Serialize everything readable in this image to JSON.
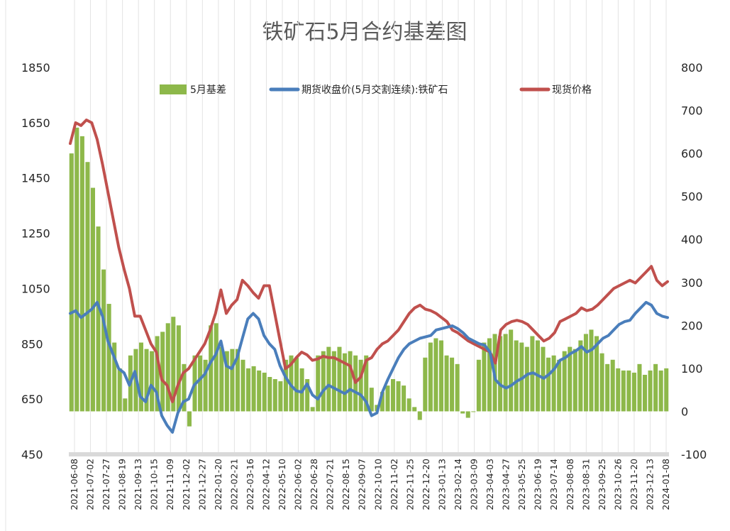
{
  "chart_data": {
    "type": "bar+line",
    "title": "铁矿石5月合约基差图",
    "x_labels": [
      "2021-06-08",
      "2021-07-02",
      "2021-07-27",
      "2021-08-19",
      "2021-09-13",
      "2021-10-15",
      "2021-11-09",
      "2021-12-02",
      "2021-12-27",
      "2022-01-20",
      "2022-02-21",
      "2022-03-16",
      "2022-04-12",
      "2022-05-10",
      "2022-06-02",
      "2022-06-28",
      "2022-07-21",
      "2022-08-15",
      "2022-09-07",
      "2022-10-10",
      "2022-11-02",
      "2022-11-25",
      "2022-12-20",
      "2023-01-13",
      "2023-02-14",
      "2023-03-09",
      "2023-04-03",
      "2023-04-27",
      "2023-05-25",
      "2023-06-19",
      "2023-07-14",
      "2023-08-08",
      "2023-08-31",
      "2023-09-25",
      "2023-10-26",
      "2023-11-20",
      "2023-12-13",
      "2024-01-08"
    ],
    "y_left": {
      "min": 450,
      "max": 1850,
      "ticks": [
        450,
        650,
        850,
        1050,
        1250,
        1450,
        1650,
        1850
      ]
    },
    "y_right": {
      "min": -100,
      "max": 800,
      "ticks": [
        -100,
        0,
        100,
        200,
        300,
        400,
        500,
        600,
        700,
        800
      ]
    },
    "legend_position": "top",
    "grid": "vertical",
    "series": [
      {
        "name": "5月基差",
        "type": "bar",
        "axis": "right",
        "color": "#8db84a",
        "values": [
          600,
          660,
          640,
          580,
          520,
          430,
          330,
          250,
          160,
          100,
          30,
          130,
          145,
          160,
          145,
          140,
          175,
          185,
          205,
          220,
          200,
          110,
          -35,
          130,
          130,
          120,
          200,
          205,
          150,
          140,
          145,
          145,
          120,
          100,
          105,
          95,
          90,
          80,
          75,
          70,
          120,
          130,
          125,
          100,
          75,
          10,
          130,
          140,
          150,
          140,
          150,
          135,
          140,
          130,
          120,
          130,
          55,
          15,
          45,
          60,
          75,
          70,
          60,
          30,
          10,
          -20,
          125,
          160,
          170,
          165,
          130,
          125,
          110,
          -5,
          -15,
          0,
          120,
          160,
          170,
          180,
          175,
          180,
          190,
          165,
          160,
          150,
          175,
          165,
          150,
          125,
          130,
          120,
          140,
          150,
          145,
          165,
          180,
          190,
          175,
          135,
          110,
          120,
          100,
          95,
          95,
          90,
          110,
          85,
          95,
          110,
          95,
          100
        ]
      },
      {
        "name": "期货收盘价(5月交割连续):铁矿石",
        "type": "line",
        "axis": "left",
        "color": "#4a7ebb",
        "values": [
          960,
          970,
          945,
          960,
          975,
          1000,
          950,
          860,
          810,
          760,
          745,
          700,
          750,
          660,
          640,
          700,
          675,
          590,
          555,
          530,
          600,
          640,
          650,
          700,
          720,
          740,
          780,
          810,
          860,
          770,
          760,
          800,
          870,
          940,
          960,
          940,
          880,
          850,
          830,
          770,
          730,
          700,
          680,
          675,
          705,
          665,
          650,
          680,
          700,
          690,
          680,
          670,
          685,
          675,
          665,
          640,
          590,
          600,
          675,
          720,
          760,
          800,
          830,
          850,
          860,
          870,
          875,
          880,
          900,
          905,
          910,
          915,
          905,
          890,
          870,
          860,
          850,
          845,
          820,
          720,
          700,
          690,
          700,
          715,
          725,
          740,
          745,
          735,
          725,
          740,
          760,
          790,
          800,
          815,
          825,
          840,
          820,
          830,
          850,
          870,
          880,
          900,
          920,
          930,
          935,
          960,
          980,
          1000,
          990,
          960,
          950,
          945
        ]
      },
      {
        "name": "现货价格",
        "type": "line",
        "axis": "left",
        "color": "#c0504d",
        "values": [
          1575,
          1650,
          1640,
          1660,
          1650,
          1590,
          1500,
          1400,
          1300,
          1200,
          1120,
          1050,
          950,
          950,
          900,
          850,
          820,
          720,
          700,
          640,
          700,
          745,
          760,
          790,
          820,
          850,
          900,
          960,
          1045,
          960,
          990,
          1010,
          1080,
          1060,
          1035,
          1015,
          1060,
          1060,
          960,
          860,
          760,
          775,
          800,
          820,
          810,
          790,
          795,
          805,
          800,
          800,
          790,
          780,
          770,
          710,
          730,
          790,
          800,
          830,
          850,
          860,
          880,
          900,
          930,
          960,
          980,
          990,
          975,
          970,
          960,
          945,
          930,
          900,
          890,
          875,
          860,
          850,
          840,
          830,
          820,
          780,
          900,
          920,
          930,
          935,
          930,
          920,
          900,
          880,
          860,
          870,
          890,
          930,
          940,
          950,
          960,
          980,
          970,
          975,
          990,
          1010,
          1030,
          1050,
          1060,
          1070,
          1080,
          1070,
          1090,
          1110,
          1130,
          1080,
          1060,
          1075
        ]
      }
    ]
  }
}
